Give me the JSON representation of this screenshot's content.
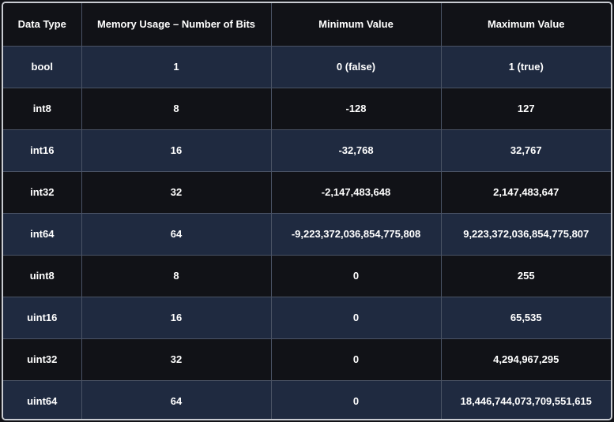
{
  "table": {
    "headers": [
      "Data Type",
      "Memory Usage – Number of Bits",
      "Minimum Value",
      "Maximum Value"
    ],
    "rows": [
      [
        "bool",
        "1",
        "0 (false)",
        "1 (true)"
      ],
      [
        "int8",
        "8",
        "-128",
        "127"
      ],
      [
        "int16",
        "16",
        "-32,768",
        "32,767"
      ],
      [
        "int32",
        "32",
        "-2,147,483,648",
        "2,147,483,647"
      ],
      [
        "int64",
        "64",
        "-9,223,372,036,854,775,808",
        "9,223,372,036,854,775,807"
      ],
      [
        "uint8",
        "8",
        "0",
        "255"
      ],
      [
        "uint16",
        "16",
        "0",
        "65,535"
      ],
      [
        "uint32",
        "32",
        "0",
        "4,294,967,295"
      ],
      [
        "uint64",
        "64",
        "0",
        "18,446,744,073,709,551,615"
      ]
    ]
  },
  "colors": {
    "background": "#111217",
    "row_alt": "#1f2a40",
    "grid": "#4a5365",
    "border": "#c9ccd2",
    "text": "#ffffff"
  }
}
